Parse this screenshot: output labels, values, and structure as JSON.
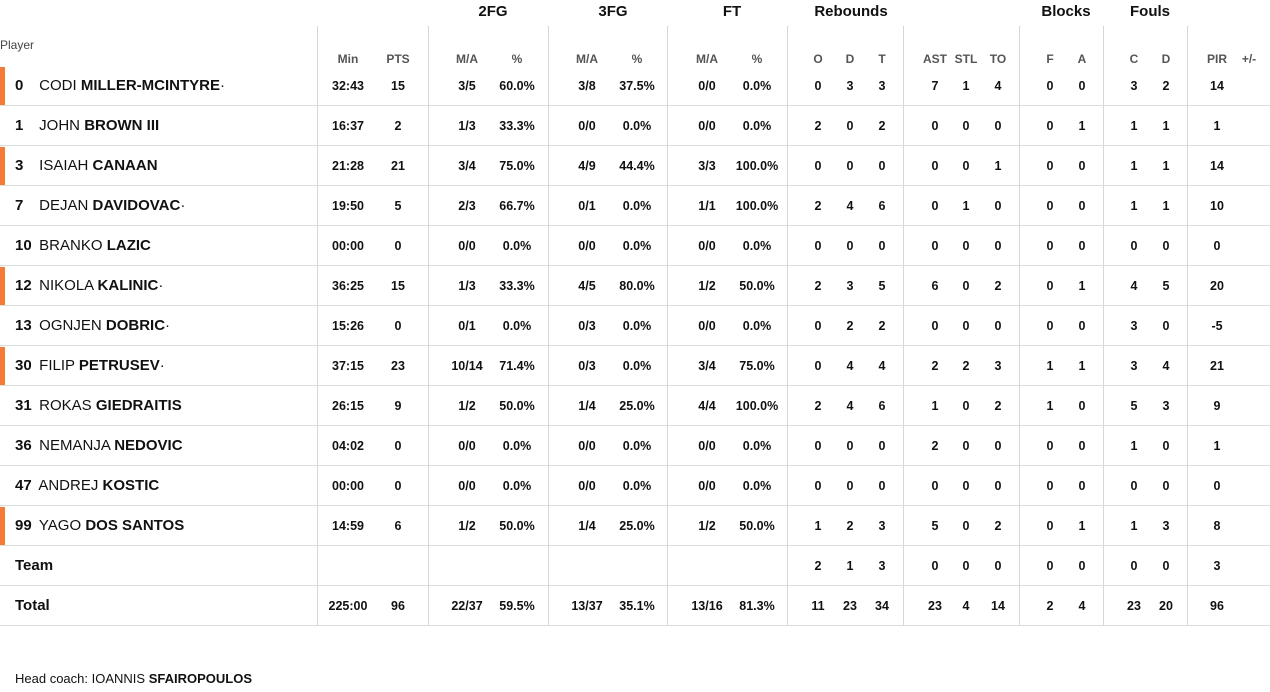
{
  "groups": {
    "fg2": "2FG",
    "fg3": "3FG",
    "ft": "FT",
    "reb": "Rebounds",
    "blk": "Blocks",
    "fouls": "Fouls"
  },
  "player_header": "Player",
  "columns": [
    "Min",
    "PTS",
    "M/A",
    "%",
    "M/A",
    "%",
    "M/A",
    "%",
    "O",
    "D",
    "T",
    "AST",
    "STL",
    "TO",
    "F",
    "A",
    "C",
    "D",
    "PIR",
    "+/-"
  ],
  "accent_color": "#f47a37",
  "rows": [
    {
      "num": "0",
      "first": "CODI",
      "last": "MILLER-MCINTYRE",
      "suffix": "·",
      "starter": true,
      "stats": [
        "32:43",
        "15",
        "3/5",
        "60.0%",
        "3/8",
        "37.5%",
        "0/0",
        "0.0%",
        "0",
        "3",
        "3",
        "7",
        "1",
        "4",
        "0",
        "0",
        "3",
        "2",
        "14",
        ""
      ]
    },
    {
      "num": "1",
      "first": "JOHN",
      "last": "BROWN III",
      "suffix": "",
      "starter": false,
      "stats": [
        "16:37",
        "2",
        "1/3",
        "33.3%",
        "0/0",
        "0.0%",
        "0/0",
        "0.0%",
        "2",
        "0",
        "2",
        "0",
        "0",
        "0",
        "0",
        "1",
        "1",
        "1",
        "1",
        ""
      ]
    },
    {
      "num": "3",
      "first": "ISAIAH",
      "last": "CANAAN",
      "suffix": "",
      "starter": true,
      "stats": [
        "21:28",
        "21",
        "3/4",
        "75.0%",
        "4/9",
        "44.4%",
        "3/3",
        "100.0%",
        "0",
        "0",
        "0",
        "0",
        "0",
        "1",
        "0",
        "0",
        "1",
        "1",
        "14",
        ""
      ]
    },
    {
      "num": "7",
      "first": "DEJAN",
      "last": "DAVIDOVAC",
      "suffix": "·",
      "starter": false,
      "stats": [
        "19:50",
        "5",
        "2/3",
        "66.7%",
        "0/1",
        "0.0%",
        "1/1",
        "100.0%",
        "2",
        "4",
        "6",
        "0",
        "1",
        "0",
        "0",
        "0",
        "1",
        "1",
        "10",
        ""
      ]
    },
    {
      "num": "10",
      "first": "BRANKO",
      "last": "LAZIC",
      "suffix": "",
      "starter": false,
      "stats": [
        "00:00",
        "0",
        "0/0",
        "0.0%",
        "0/0",
        "0.0%",
        "0/0",
        "0.0%",
        "0",
        "0",
        "0",
        "0",
        "0",
        "0",
        "0",
        "0",
        "0",
        "0",
        "0",
        ""
      ]
    },
    {
      "num": "12",
      "first": "NIKOLA",
      "last": "KALINIC",
      "suffix": "·",
      "starter": true,
      "stats": [
        "36:25",
        "15",
        "1/3",
        "33.3%",
        "4/5",
        "80.0%",
        "1/2",
        "50.0%",
        "2",
        "3",
        "5",
        "6",
        "0",
        "2",
        "0",
        "1",
        "4",
        "5",
        "20",
        ""
      ]
    },
    {
      "num": "13",
      "first": "OGNJEN",
      "last": "DOBRIC",
      "suffix": "·",
      "starter": false,
      "stats": [
        "15:26",
        "0",
        "0/1",
        "0.0%",
        "0/3",
        "0.0%",
        "0/0",
        "0.0%",
        "0",
        "2",
        "2",
        "0",
        "0",
        "0",
        "0",
        "0",
        "3",
        "0",
        "-5",
        ""
      ]
    },
    {
      "num": "30",
      "first": "FILIP",
      "last": "PETRUSEV",
      "suffix": "·",
      "starter": true,
      "stats": [
        "37:15",
        "23",
        "10/14",
        "71.4%",
        "0/3",
        "0.0%",
        "3/4",
        "75.0%",
        "0",
        "4",
        "4",
        "2",
        "2",
        "3",
        "1",
        "1",
        "3",
        "4",
        "21",
        ""
      ]
    },
    {
      "num": "31",
      "first": "ROKAS",
      "last": "GIEDRAITIS",
      "suffix": "",
      "starter": false,
      "stats": [
        "26:15",
        "9",
        "1/2",
        "50.0%",
        "1/4",
        "25.0%",
        "4/4",
        "100.0%",
        "2",
        "4",
        "6",
        "1",
        "0",
        "2",
        "1",
        "0",
        "5",
        "3",
        "9",
        ""
      ]
    },
    {
      "num": "36",
      "first": "NEMANJA",
      "last": "NEDOVIC",
      "suffix": "",
      "starter": false,
      "stats": [
        "04:02",
        "0",
        "0/0",
        "0.0%",
        "0/0",
        "0.0%",
        "0/0",
        "0.0%",
        "0",
        "0",
        "0",
        "2",
        "0",
        "0",
        "0",
        "0",
        "1",
        "0",
        "1",
        ""
      ]
    },
    {
      "num": "47",
      "first": "ANDREJ",
      "last": "KOSTIC",
      "suffix": "",
      "starter": false,
      "stats": [
        "00:00",
        "0",
        "0/0",
        "0.0%",
        "0/0",
        "0.0%",
        "0/0",
        "0.0%",
        "0",
        "0",
        "0",
        "0",
        "0",
        "0",
        "0",
        "0",
        "0",
        "0",
        "0",
        ""
      ]
    },
    {
      "num": "99",
      "first": "YAGO",
      "last": "DOS SANTOS",
      "suffix": "",
      "starter": true,
      "stats": [
        "14:59",
        "6",
        "1/2",
        "50.0%",
        "1/4",
        "25.0%",
        "1/2",
        "50.0%",
        "1",
        "2",
        "3",
        "5",
        "0",
        "2",
        "0",
        "1",
        "1",
        "3",
        "8",
        ""
      ]
    },
    {
      "num": "",
      "first": "",
      "last": "Team",
      "suffix": "",
      "starter": false,
      "stats": [
        "",
        "",
        "",
        "",
        "",
        "",
        "",
        "",
        "2",
        "1",
        "3",
        "0",
        "0",
        "0",
        "0",
        "0",
        "0",
        "0",
        "3",
        ""
      ]
    },
    {
      "num": "",
      "first": "",
      "last": "Total",
      "suffix": "",
      "starter": false,
      "stats": [
        "225:00",
        "96",
        "22/37",
        "59.5%",
        "13/37",
        "35.1%",
        "13/16",
        "81.3%",
        "11",
        "23",
        "34",
        "23",
        "4",
        "14",
        "2",
        "4",
        "23",
        "20",
        "96",
        ""
      ]
    }
  ],
  "coach": {
    "label": "Head coach:",
    "first": "IOANNIS",
    "last": "SFAIROPOULOS"
  }
}
